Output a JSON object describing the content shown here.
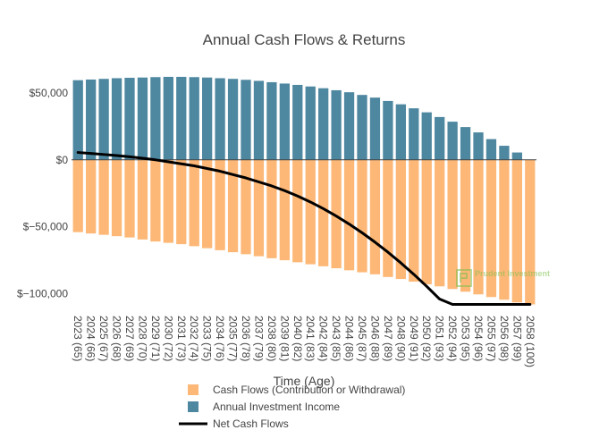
{
  "chart_data": {
    "type": "bar",
    "title": "Annual Cash Flows & Returns",
    "xlabel": "Time (Age)",
    "ylabel": "",
    "ylim": [
      -111000,
      76000
    ],
    "yticks": [
      50000,
      0,
      -50000,
      -100000
    ],
    "ytick_labels": [
      "$50,000",
      "$0",
      "$−50,000",
      "$−100,000"
    ],
    "categories": [
      "2023 (65)",
      "2024 (66)",
      "2025 (67)",
      "2026 (68)",
      "2027 (69)",
      "2028 (70)",
      "2029 (71)",
      "2030 (72)",
      "2031 (73)",
      "2032 (74)",
      "2033 (75)",
      "2034 (76)",
      "2035 (77)",
      "2036 (78)",
      "2037 (79)",
      "2038 (80)",
      "2039 (81)",
      "2040 (82)",
      "2041 (83)",
      "2042 (84)",
      "2043 (85)",
      "2044 (86)",
      "2045 (87)",
      "2046 (88)",
      "2047 (89)",
      "2048 (90)",
      "2049 (91)",
      "2050 (92)",
      "2051 (93)",
      "2052 (94)",
      "2053 (95)",
      "2054 (96)",
      "2055 (97)",
      "2056 (98)",
      "2057 (99)",
      "2058 (100)"
    ],
    "series": [
      {
        "name": "Cash Flows (Contribution or Withdrawal)",
        "kind": "bar",
        "color": "#fdb877",
        "values": [
          -54000,
          -55000,
          -56000,
          -57000,
          -58000,
          -59500,
          -61000,
          -62000,
          -63000,
          -64500,
          -66000,
          -67500,
          -69000,
          -70500,
          -72000,
          -73500,
          -75000,
          -76500,
          -78000,
          -79500,
          -81000,
          -82500,
          -84000,
          -85500,
          -87500,
          -89000,
          -91000,
          -93000,
          -94500,
          -96500,
          -98500,
          -100500,
          -102500,
          -104500,
          -106500,
          -108000
        ]
      },
      {
        "name": "Annual Investment Income",
        "kind": "bar",
        "color": "#4e87a0",
        "values": [
          59500,
          60000,
          60500,
          61000,
          61300,
          61500,
          61800,
          62000,
          62000,
          61800,
          61500,
          61000,
          60500,
          59800,
          59000,
          58000,
          57000,
          56000,
          54800,
          53500,
          52000,
          50500,
          48500,
          46500,
          44000,
          41500,
          38500,
          35500,
          32000,
          28500,
          24500,
          20500,
          15500,
          10500,
          5500,
          0
        ]
      },
      {
        "name": "Net Cash Flows",
        "kind": "line",
        "color": "#000000",
        "values": [
          5500,
          4800,
          4000,
          3200,
          2300,
          1200,
          0,
          -1500,
          -3000,
          -4500,
          -6500,
          -8500,
          -11000,
          -13500,
          -16500,
          -19500,
          -23000,
          -27000,
          -31500,
          -36500,
          -42000,
          -48000,
          -54500,
          -61500,
          -69000,
          -77000,
          -85500,
          -94500,
          -104000,
          -108000,
          -108000,
          -108000,
          -108000,
          -108000,
          -108000,
          -108000
        ]
      }
    ],
    "legend": [
      {
        "label": "Cash Flows (Contribution or Withdrawal)",
        "color": "#fdb877",
        "kind": "bar"
      },
      {
        "label": "Annual Investment Income",
        "color": "#4e87a0",
        "kind": "bar"
      },
      {
        "label": "Net Cash Flows",
        "color": "#000000",
        "kind": "line"
      }
    ],
    "legend_position": "bottom-center",
    "watermark_logo": "Prudent Investment"
  }
}
